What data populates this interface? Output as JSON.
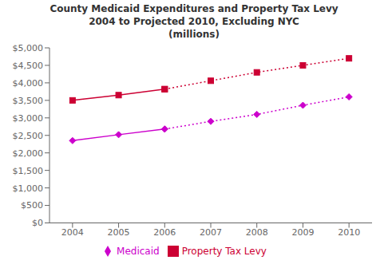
{
  "chart_data": {
    "type": "line",
    "title": "County Medicaid Expenditures and Property Tax Levy\n2004 to Projected 2010, Excluding NYC\n(millions)",
    "x": [
      2004,
      2005,
      2006,
      2007,
      2008,
      2009,
      2010
    ],
    "xlim": [
      2003.5,
      2010.5
    ],
    "xticks": [
      2004,
      2005,
      2006,
      2007,
      2008,
      2009,
      2010
    ],
    "ylim": [
      0,
      5000
    ],
    "yticks": [
      {
        "value": 0,
        "label": "$0"
      },
      {
        "value": 500,
        "label": "$500"
      },
      {
        "value": 1000,
        "label": "$1,000"
      },
      {
        "value": 1500,
        "label": "$1,500"
      },
      {
        "value": 2000,
        "label": "$2,000"
      },
      {
        "value": 2500,
        "label": "$2,500"
      },
      {
        "value": 3000,
        "label": "$3,000"
      },
      {
        "value": 3500,
        "label": "$3,500"
      },
      {
        "value": 4000,
        "label": "$4,000"
      },
      {
        "value": 4500,
        "label": "$4,500"
      },
      {
        "value": 5000,
        "label": "$5,000"
      }
    ],
    "series": [
      {
        "name": "Medicaid",
        "color": "#cc00cc",
        "marker": "diamond",
        "values": [
          2350,
          2520,
          2680,
          2900,
          3100,
          3360,
          3600
        ]
      },
      {
        "name": "Property Tax Levy",
        "color": "#cc0033",
        "marker": "square",
        "values": [
          3500,
          3650,
          3820,
          4060,
          4300,
          4500,
          4700
        ]
      }
    ],
    "grid": false,
    "legend": "bottom"
  }
}
